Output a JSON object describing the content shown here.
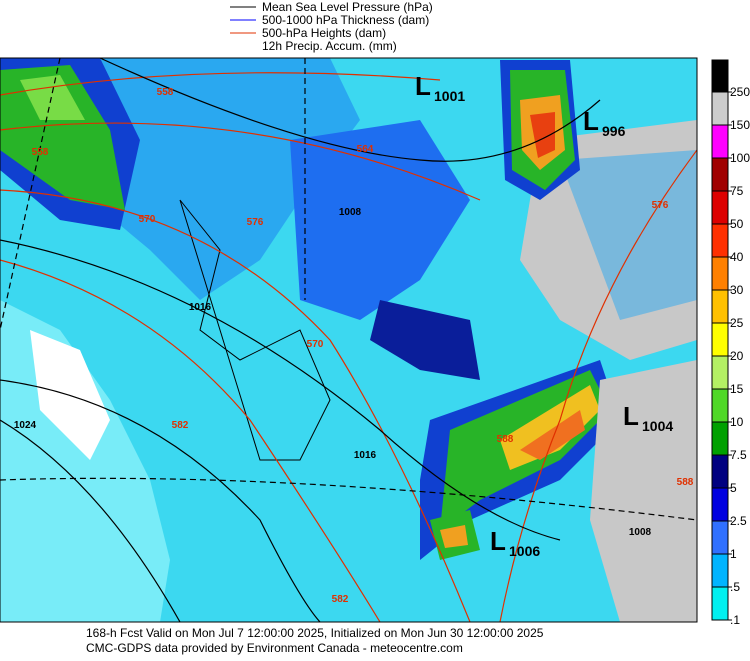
{
  "legend": [
    "Mean Sea Level Pressure (hPa)",
    "500-1000 hPa Thickness (dam)",
    "500-hPa Heights (dam)",
    "12h Precip. Accum. (mm)"
  ],
  "colorbar": [
    "250",
    "150",
    "100",
    "75",
    "50",
    "40",
    "30",
    "25",
    "20",
    "15",
    "10",
    "7.5",
    "5",
    "2.5",
    "1",
    ".5",
    ".1"
  ],
  "lows": [
    {
      "symbol": "L",
      "value": "1001"
    },
    {
      "symbol": "L",
      "value": "996"
    },
    {
      "symbol": "L",
      "value": "1004"
    },
    {
      "symbol": "L",
      "value": "1006"
    }
  ],
  "height_labels": [
    "558",
    "558",
    "564",
    "570",
    "570",
    "576",
    "576",
    "582",
    "588",
    "588",
    "582"
  ],
  "pressure_labels": [
    "1008",
    "1016",
    "1024",
    "1016",
    "1008"
  ],
  "footer": [
    "168-h Fcst Valid on Mon Jul  7 12:00:00 2025, Initialized on Mon Jun 30 12:00:00 2025",
    "CMC-GDPS data provided by Environment Canada - meteocentre.com"
  ]
}
